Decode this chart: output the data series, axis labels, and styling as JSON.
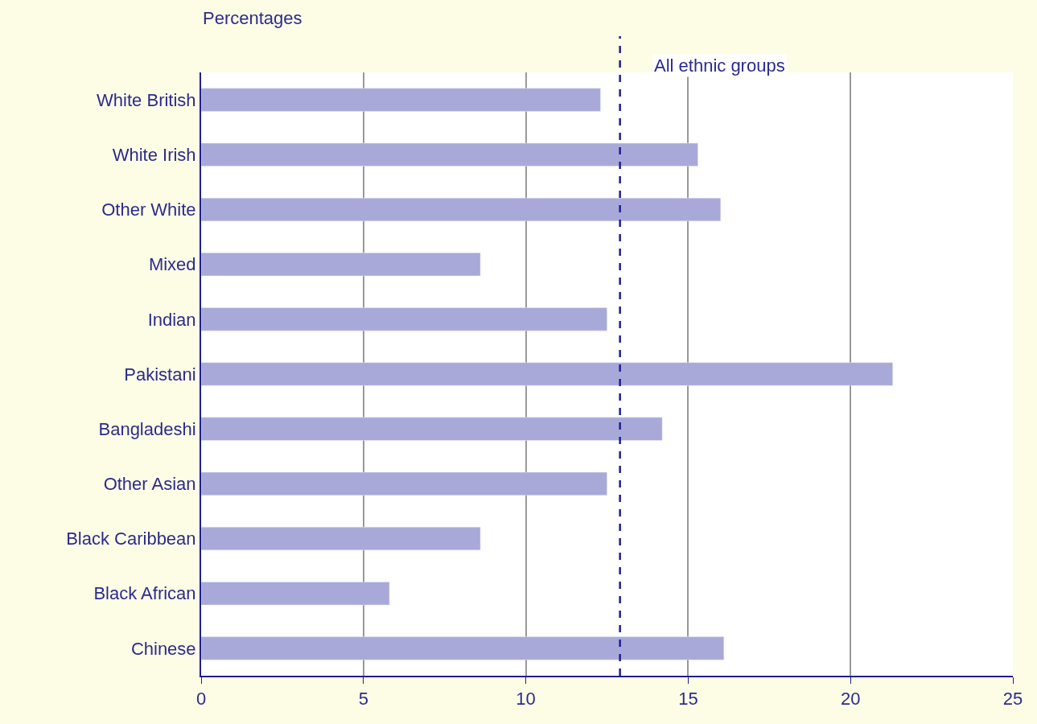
{
  "chart_data": {
    "type": "bar",
    "orientation": "horizontal",
    "xlabel": "Percentages",
    "categories": [
      "White British",
      "White Irish",
      "Other White",
      "Mixed",
      "Indian",
      "Pakistani",
      "Bangladeshi",
      "Other Asian",
      "Black Caribbean",
      "Black African",
      "Chinese"
    ],
    "values": [
      12.3,
      15.3,
      16.0,
      8.6,
      12.5,
      21.3,
      14.2,
      12.5,
      8.6,
      5.8,
      16.1
    ],
    "color": "#a9a9d9",
    "xlim": [
      0,
      25
    ],
    "xticks": [
      0,
      5,
      10,
      15,
      20,
      25
    ],
    "grid": "x",
    "ref_lines": [
      {
        "axis": "x",
        "value": 12.9,
        "label": "All ethnic groups",
        "color": "#1f1f8f",
        "line_style": "dashed"
      }
    ]
  }
}
